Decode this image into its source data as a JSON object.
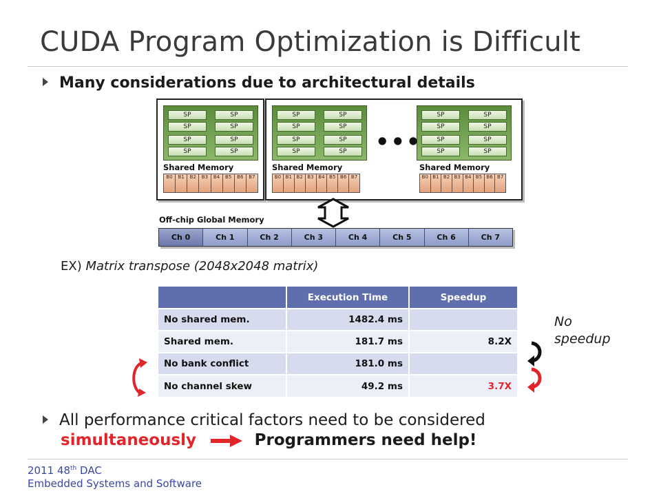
{
  "slide": {
    "title": "CUDA Program Optimization is Difficult",
    "bullet1": "Many considerations due to architectural details",
    "example_prefix": "EX) ",
    "example_text": "Matrix transpose (2048x2048 matrix)",
    "bullet2_line1": "All performance critical factors need to be considered",
    "bullet2_red": "simultaneously",
    "bullet2_help": "Programmers need help!",
    "no_speedup_line1": "No",
    "no_speedup_line2": "speedup"
  },
  "diagram": {
    "sp_label": "SP",
    "shared_memory_label": "Shared Memory",
    "ellipsis": "•••",
    "bank_labels": [
      "B0",
      "B1",
      "B2",
      "B3",
      "B4",
      "B5",
      "B6",
      "B7"
    ],
    "global_memory_label": "Off-chip Global Memory",
    "channels": [
      "Ch 0",
      "Ch 1",
      "Ch 2",
      "Ch 3",
      "Ch 4",
      "Ch 5",
      "Ch 6",
      "Ch 7"
    ]
  },
  "table": {
    "headers": [
      "",
      "Execution Time",
      "Speedup"
    ],
    "rows": [
      {
        "name": "No shared mem.",
        "time": "1482.4 ms",
        "speedup": ""
      },
      {
        "name": "Shared mem.",
        "time": "181.7 ms",
        "speedup": "8.2X"
      },
      {
        "name": "No bank conflict",
        "time": "181.0 ms",
        "speedup": ""
      },
      {
        "name": "No channel skew",
        "time": "49.2 ms",
        "speedup": "3.7X"
      }
    ]
  },
  "footer": {
    "line1_year": "2011 48",
    "line1_sup": "th",
    "line1_event": " DAC",
    "line2": "Embedded Systems and Software"
  },
  "colors": {
    "accent_red": "#e0262a",
    "table_header": "#5f6fae",
    "footer_blue": "#3b46a4"
  }
}
